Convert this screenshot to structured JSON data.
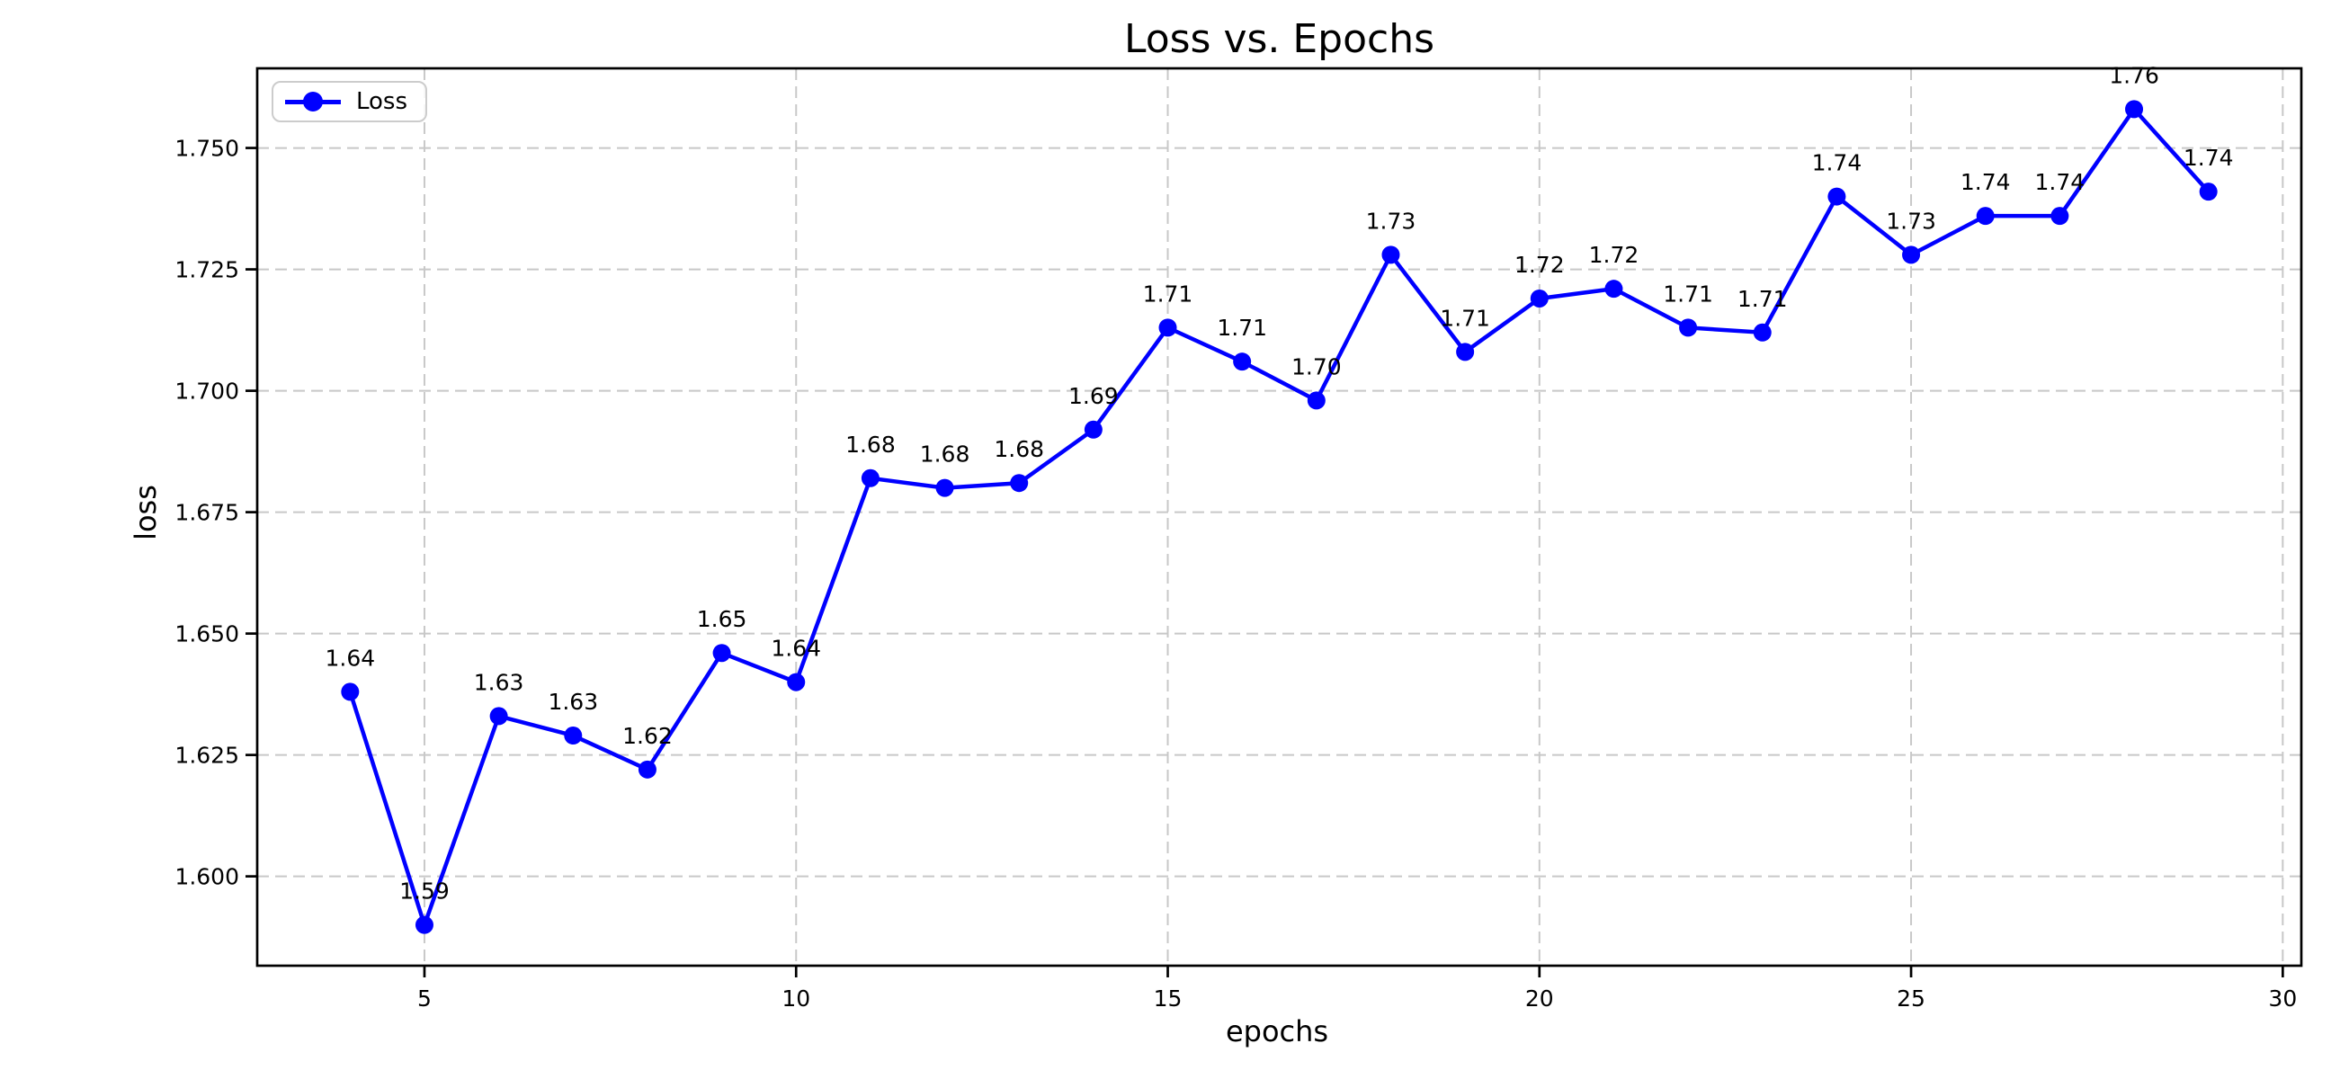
{
  "chart_data": {
    "type": "line",
    "title": "Loss vs. Epochs",
    "xlabel": "epochs",
    "ylabel": "loss",
    "grid": true,
    "legend": {
      "position": "upper-left",
      "entries": [
        "Loss"
      ]
    },
    "xlim": [
      2.75,
      30.25
    ],
    "ylim": [
      1.5816,
      1.7664
    ],
    "xticks": [
      5,
      10,
      15,
      20,
      25,
      30
    ],
    "xtick_labels": [
      "5",
      "10",
      "15",
      "20",
      "25",
      "30"
    ],
    "yticks": [
      1.6,
      1.625,
      1.65,
      1.675,
      1.7,
      1.725,
      1.75
    ],
    "ytick_labels": [
      "1.600",
      "1.625",
      "1.650",
      "1.675",
      "1.700",
      "1.725",
      "1.750"
    ],
    "series": [
      {
        "name": "Loss",
        "color": "#0000ff",
        "marker": "circle",
        "x": [
          4,
          5,
          6,
          7,
          8,
          9,
          10,
          11,
          12,
          13,
          14,
          15,
          16,
          17,
          18,
          19,
          20,
          21,
          22,
          23,
          24,
          25,
          26,
          27,
          28,
          29
        ],
        "y": [
          1.638,
          1.59,
          1.633,
          1.629,
          1.622,
          1.646,
          1.64,
          1.682,
          1.68,
          1.681,
          1.692,
          1.713,
          1.706,
          1.698,
          1.728,
          1.708,
          1.719,
          1.721,
          1.713,
          1.712,
          1.74,
          1.728,
          1.736,
          1.736,
          1.758,
          1.741
        ],
        "point_labels": [
          "1.64",
          "1.59",
          "1.63",
          "1.63",
          "1.62",
          "1.65",
          "1.64",
          "1.68",
          "1.68",
          "1.68",
          "1.69",
          "1.71",
          "1.71",
          "1.70",
          "1.73",
          "1.71",
          "1.72",
          "1.72",
          "1.71",
          "1.71",
          "1.74",
          "1.73",
          "1.74",
          "1.74",
          "1.76",
          "1.74"
        ]
      }
    ],
    "colors": {
      "line": "#0000ff",
      "grid": "#c8c8c8",
      "spine": "#000000",
      "text": "#000000",
      "legend_border": "#cccccc",
      "background": "#ffffff"
    }
  }
}
